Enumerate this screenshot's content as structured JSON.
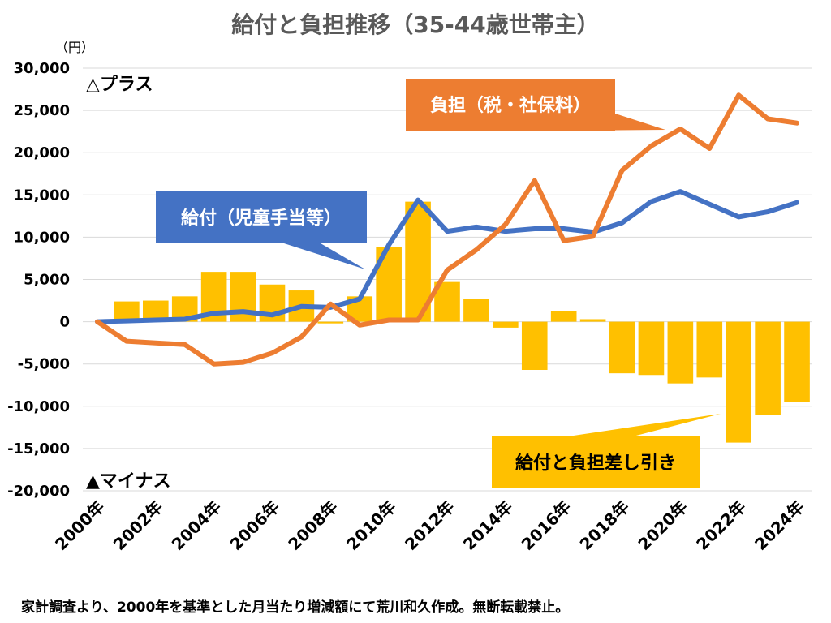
{
  "title": "給付と負担推移（35-44歳世帯主）",
  "source_note": "家計調査より、2000年を基準とした月当たり増減額にて荒川和久作成。無断転載禁止。",
  "colors": {
    "benefit": "#4472C4",
    "burden": "#ED7D31",
    "difference": "#FFC000",
    "grid": "#D9D9D9",
    "title": "#595959"
  },
  "chart_data": {
    "type": "bar+line",
    "title": "給付と負担推移（35-44歳世帯主）",
    "y_unit": "（円）",
    "ylim": [
      -20000,
      30000
    ],
    "y_ticks": [
      30000,
      25000,
      20000,
      15000,
      10000,
      5000,
      0,
      -5000,
      -10000,
      -15000,
      -20000
    ],
    "y_tick_labels": [
      "30,000",
      "25,000",
      "20,000",
      "15,000",
      "10,000",
      "5,000",
      "0",
      "-5,000",
      "-10,000",
      "-15,000",
      "-20,000"
    ],
    "grid": true,
    "categories": [
      "2000年",
      "2001年",
      "2002年",
      "2003年",
      "2004年",
      "2005年",
      "2006年",
      "2007年",
      "2008年",
      "2009年",
      "2010年",
      "2011年",
      "2012年",
      "2013年",
      "2014年",
      "2015年",
      "2016年",
      "2017年",
      "2018年",
      "2019年",
      "2020年",
      "2021年",
      "2022年",
      "2023年",
      "2024年"
    ],
    "x_tick_labels": [
      "2000年",
      "2002年",
      "2004年",
      "2006年",
      "2008年",
      "2010年",
      "2012年",
      "2014年",
      "2016年",
      "2018年",
      "2020年",
      "2022年",
      "2024年"
    ],
    "plus_label": "△プラス",
    "minus_label": "▲マイナス",
    "series": [
      {
        "name": "給付と負担差し引き",
        "kind": "bar",
        "color": "#FFC000",
        "values": [
          0,
          2400,
          2500,
          3000,
          5900,
          5900,
          4400,
          3700,
          -200,
          3000,
          8800,
          14200,
          4700,
          2700,
          -700,
          -5700,
          1300,
          300,
          -6100,
          -6300,
          -7300,
          -6600,
          -14300,
          -11000,
          -9500
        ]
      },
      {
        "name": "負担（税・社保料）",
        "kind": "line",
        "color": "#ED7D31",
        "values": [
          0,
          -2300,
          -2500,
          -2700,
          -5000,
          -4800,
          -3700,
          -1800,
          2100,
          -400,
          200,
          200,
          6100,
          8500,
          11500,
          16700,
          9600,
          10100,
          17900,
          20800,
          22800,
          20500,
          26800,
          24000,
          23500
        ]
      },
      {
        "name": "給付（児童手当等）",
        "kind": "line",
        "color": "#4472C4",
        "values": [
          0,
          100,
          200,
          300,
          1000,
          1200,
          800,
          1800,
          1700,
          2700,
          9100,
          14400,
          10700,
          11200,
          10700,
          11000,
          11000,
          10600,
          11700,
          14200,
          15400,
          13900,
          12400,
          13000,
          14100
        ]
      }
    ],
    "callouts": [
      {
        "series": "給付（児童手当等）",
        "text": "給付（児童手当等）"
      },
      {
        "series": "負担（税・社保料）",
        "text": "負担（税・社保料）"
      },
      {
        "series": "給付と負担差し引き",
        "text": "給付と負担差し引き"
      }
    ]
  }
}
